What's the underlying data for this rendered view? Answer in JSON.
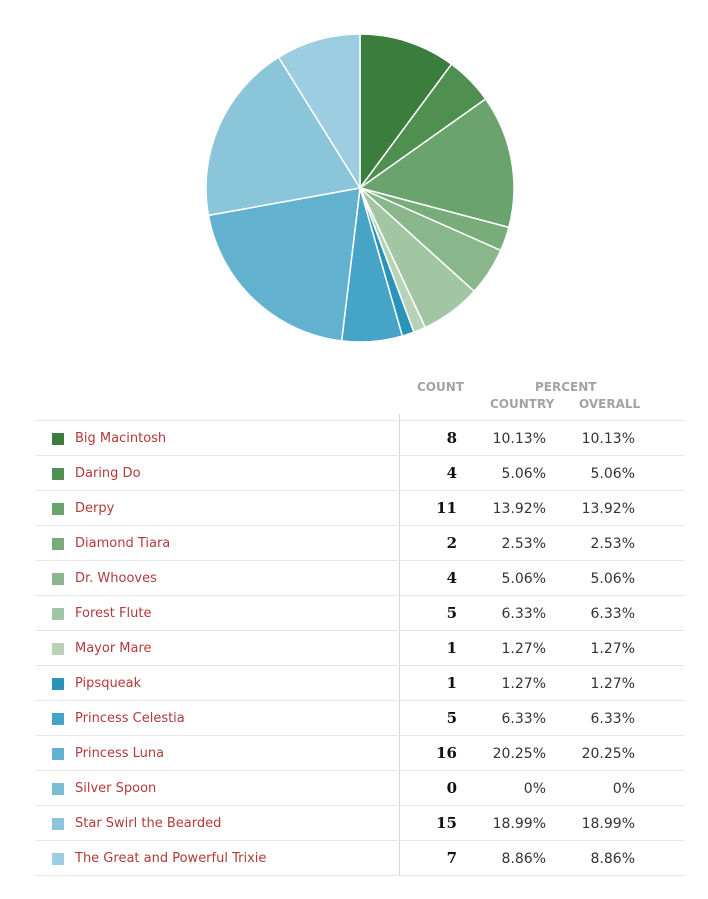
{
  "chart_data": {
    "type": "pie",
    "columns": {
      "count": "COUNT",
      "percent": "PERCENT",
      "country": "COUNTRY",
      "overall": "OVERALL"
    },
    "rows": [
      {
        "name": "Big Macintosh",
        "color": "#3a7d3c",
        "count": "8",
        "country": "10.13%",
        "overall": "10.13%",
        "value": 8
      },
      {
        "name": "Daring Do",
        "color": "#4f8f50",
        "count": "4",
        "country": "5.06%",
        "overall": "5.06%",
        "value": 4
      },
      {
        "name": "Derpy",
        "color": "#6aa36d",
        "count": "11",
        "country": "13.92%",
        "overall": "13.92%",
        "value": 11
      },
      {
        "name": "Diamond Tiara",
        "color": "#78ac7a",
        "count": "2",
        "country": "2.53%",
        "overall": "2.53%",
        "value": 2
      },
      {
        "name": "Dr. Whooves",
        "color": "#89b68b",
        "count": "4",
        "country": "5.06%",
        "overall": "5.06%",
        "value": 4
      },
      {
        "name": "Forest Flute",
        "color": "#a2c6a3",
        "count": "5",
        "country": "6.33%",
        "overall": "6.33%",
        "value": 5
      },
      {
        "name": "Mayor Mare",
        "color": "#b7d2b7",
        "count": "1",
        "country": "1.27%",
        "overall": "1.27%",
        "value": 1
      },
      {
        "name": "Pipsqueak",
        "color": "#2a93b9",
        "count": "1",
        "country": "1.27%",
        "overall": "1.27%",
        "value": 1
      },
      {
        "name": "Princess Celestia",
        "color": "#46a4c6",
        "count": "5",
        "country": "6.33%",
        "overall": "6.33%",
        "value": 5
      },
      {
        "name": "Princess Luna",
        "color": "#62b1ce",
        "count": "16",
        "country": "20.25%",
        "overall": "20.25%",
        "value": 16
      },
      {
        "name": "Silver Spoon",
        "color": "#79bcd4",
        "count": "0",
        "country": "0%",
        "overall": "0%",
        "value": 0
      },
      {
        "name": "Star Swirl the Bearded",
        "color": "#8ac5d9",
        "count": "15",
        "country": "18.99%",
        "overall": "18.99%",
        "value": 15
      },
      {
        "name": "The Great and Powerful Trixie",
        "color": "#9dcde0",
        "count": "7",
        "country": "8.86%",
        "overall": "8.86%",
        "value": 7
      }
    ]
  }
}
